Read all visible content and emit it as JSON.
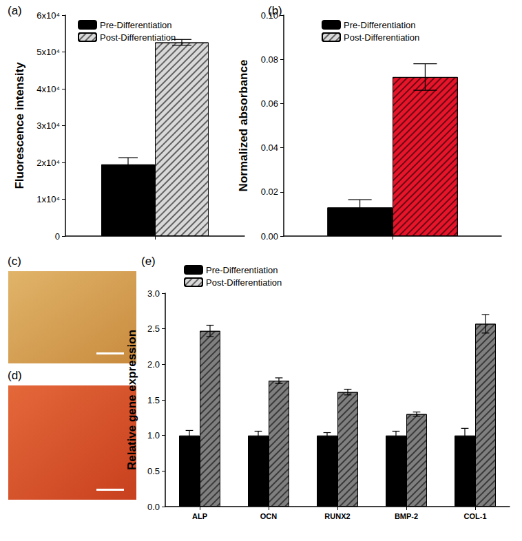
{
  "chart_data": [
    {
      "type": "bar",
      "title": "(a)",
      "y_label": "Fluorescence intensity",
      "categories": [
        null
      ],
      "series": [
        {
          "name": "Pre-Differentiation",
          "color": "#000000",
          "values": [
            19500
          ],
          "errors": [
            1800
          ]
        },
        {
          "name": "Post-Differentiation",
          "color": "#d9d9d9",
          "values": [
            52600
          ],
          "errors": [
            800
          ]
        }
      ],
      "ylim": [
        0,
        60000
      ],
      "yticks": [
        0,
        {
          "value": 10000,
          "label": "1x10⁴"
        },
        {
          "value": 20000,
          "label": "2x10⁴"
        },
        {
          "value": 30000,
          "label": "3x10⁴"
        },
        {
          "value": 40000,
          "label": "4x10⁴"
        },
        {
          "value": 50000,
          "label": "5x10⁴"
        },
        {
          "value": 60000,
          "label": "6x10⁴"
        }
      ],
      "legend": "upper left",
      "grid": false
    },
    {
      "type": "bar",
      "title": "(b)",
      "y_label": "Normalized absorbance",
      "categories": [
        null
      ],
      "series": [
        {
          "name": "Pre-Differentiation",
          "color": "#000000",
          "values": [
            0.013
          ],
          "errors": [
            0.0035
          ]
        },
        {
          "name": "Post-Differentiation",
          "color": "#e8142a",
          "values": [
            0.072
          ],
          "errors": [
            0.006
          ]
        }
      ],
      "ylim": [
        0,
        0.1
      ],
      "yticks": [
        {
          "value": 0,
          "label": "0.00"
        },
        {
          "value": 0.02,
          "label": "0.02"
        },
        {
          "value": 0.04,
          "label": "0.04"
        },
        {
          "value": 0.06,
          "label": "0.06"
        },
        {
          "value": 0.08,
          "label": "0.08"
        },
        {
          "value": 0.1,
          "label": "0.10"
        }
      ],
      "legend": "upper left",
      "grid": false
    },
    {
      "type": "image",
      "title": "(c)"
    },
    {
      "type": "image",
      "title": "(d)"
    },
    {
      "type": "bar",
      "title": "(e)",
      "y_label": "Relative gene expression",
      "categories": [
        "ALP",
        "OCN",
        "RUNX2",
        "BMP-2",
        "COL-1"
      ],
      "series": [
        {
          "name": "Pre-Differentiation",
          "color": "#000000",
          "values": [
            1.0,
            1.0,
            1.0,
            1.0,
            1.0
          ],
          "errors": [
            0.07,
            0.06,
            0.04,
            0.06,
            0.1
          ]
        },
        {
          "name": "Post-Differentiation",
          "color": "#7f7f7f",
          "values": [
            2.47,
            1.77,
            1.61,
            1.3,
            2.57
          ],
          "errors": [
            0.08,
            0.04,
            0.04,
            0.03,
            0.13
          ]
        }
      ],
      "ylim": [
        0,
        3.0
      ],
      "yticks": [
        {
          "value": 0,
          "label": "0.0"
        },
        {
          "value": 0.5,
          "label": "0.5"
        },
        {
          "value": 1.0,
          "label": "1.0"
        },
        {
          "value": 1.5,
          "label": "1.5"
        },
        {
          "value": 2.0,
          "label": "2.0"
        },
        {
          "value": 2.5,
          "label": "2.5"
        },
        {
          "value": 3.0,
          "label": "3.0"
        }
      ],
      "legend": "upper left",
      "grid": false
    }
  ]
}
